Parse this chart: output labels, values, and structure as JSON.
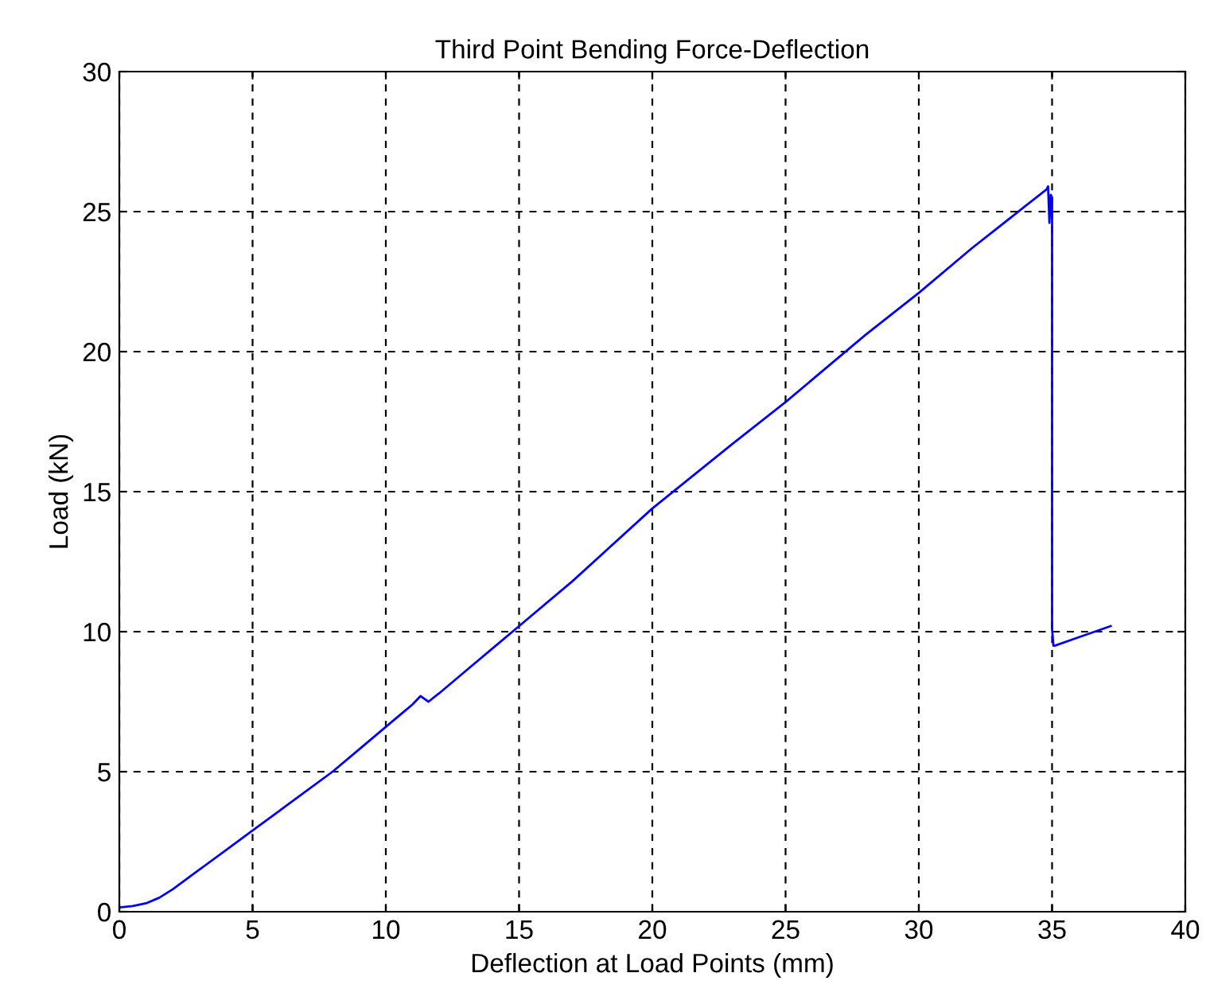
{
  "chart_data": {
    "type": "line",
    "title": "Third Point Bending Force-Deflection",
    "xlabel": "Deflection at Load Points (mm)",
    "ylabel": "Load (kN)",
    "series": [
      {
        "color": "#0000ff",
        "x": [
          0,
          0.5,
          1,
          1.5,
          2,
          3,
          4,
          5,
          6,
          7,
          8,
          9,
          10,
          11,
          11.3,
          11.6,
          12,
          13,
          14,
          15,
          17,
          20,
          23,
          25,
          28,
          30,
          32,
          34,
          34.8,
          34.85,
          34.9,
          34.95,
          35,
          35,
          35.05,
          35.1,
          36,
          37.2
        ],
        "values": [
          0.15,
          0.2,
          0.3,
          0.5,
          0.8,
          1.5,
          2.2,
          2.9,
          3.6,
          4.3,
          5.0,
          5.8,
          6.6,
          7.4,
          7.7,
          7.5,
          7.8,
          8.6,
          9.4,
          10.2,
          11.8,
          14.4,
          16.7,
          18.2,
          20.6,
          22.1,
          23.7,
          25.2,
          25.8,
          25.9,
          24.6,
          25.6,
          25.5,
          10.1,
          9.5,
          9.5,
          9.8,
          10.2
        ]
      }
    ],
    "xlim": [
      0,
      40
    ],
    "ylim": [
      0,
      30
    ],
    "xticks": [
      0,
      5,
      10,
      15,
      20,
      25,
      30,
      35,
      40
    ],
    "yticks": [
      0,
      5,
      10,
      15,
      20,
      25,
      30
    ],
    "grid": true,
    "line_style": "solid",
    "marker": "none"
  }
}
